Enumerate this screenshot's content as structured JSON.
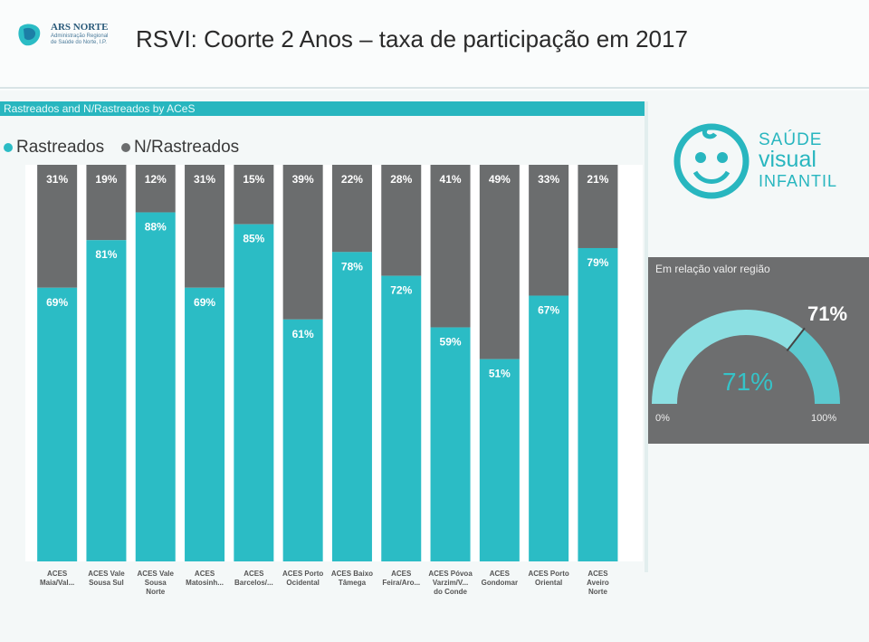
{
  "slide": {
    "logo_name": "ARS NORTE",
    "logo_sub": "Administração Regional de Saúde do Norte, I.P.",
    "title": "RSVI: Coorte 2 Anos – taxa de participação em 2017"
  },
  "panel": {
    "header": "Rastreados and N/Rastreados by ACeS"
  },
  "brand": {
    "line1": "SAÚDE",
    "line2": "visual",
    "line3": "INFANTIL",
    "icon": "smiling-baby-face-icon"
  },
  "colors": {
    "rastreados": "#2bbcc5",
    "n_rastreados": "#6b6d6e",
    "accent": "#28b6bf"
  },
  "chart_data": {
    "type": "bar",
    "stacked": true,
    "percent": true,
    "title": "Rastreados and N/Rastreados by ACeS",
    "ylim": [
      0,
      100
    ],
    "legend_position": "top-left",
    "categories": [
      "ACES Maia/Val...",
      "ACES Vale Sousa Sul",
      "ACES Vale Sousa Norte",
      "ACES Matosinh...",
      "ACES Barcelos/...",
      "ACES Porto Ocidental",
      "ACES Baixo Tâmega",
      "ACES Feira/Aro...",
      "ACES Póvoa Varzim/V... do Conde",
      "ACES Gondomar",
      "ACES Porto Oriental",
      "ACES Aveiro Norte"
    ],
    "series": [
      {
        "name": "Rastreados",
        "values": [
          69,
          81,
          88,
          69,
          85,
          61,
          78,
          72,
          59,
          51,
          67,
          79
        ]
      },
      {
        "name": "N/Rastreados",
        "values": [
          31,
          19,
          12,
          31,
          15,
          39,
          22,
          28,
          41,
          49,
          33,
          21
        ]
      }
    ],
    "value_labels": {
      "rastreados": [
        "69%",
        "81%",
        "88%",
        "69%",
        "85%",
        "61%",
        "78%",
        "72%",
        "59%",
        "51%",
        "67%",
        "79%"
      ],
      "n_rastreados": [
        "31%",
        "19%",
        "12%",
        "31%",
        "15%",
        "39%",
        "22%",
        "28%",
        "41%",
        "49%",
        "33%",
        "21%"
      ]
    }
  },
  "gauge": {
    "title": "Em relação valor região",
    "value": 71,
    "min": 0,
    "max": 100,
    "value_label": "71%",
    "target_label": "71%",
    "min_label": "0%",
    "max_label": "100%"
  }
}
